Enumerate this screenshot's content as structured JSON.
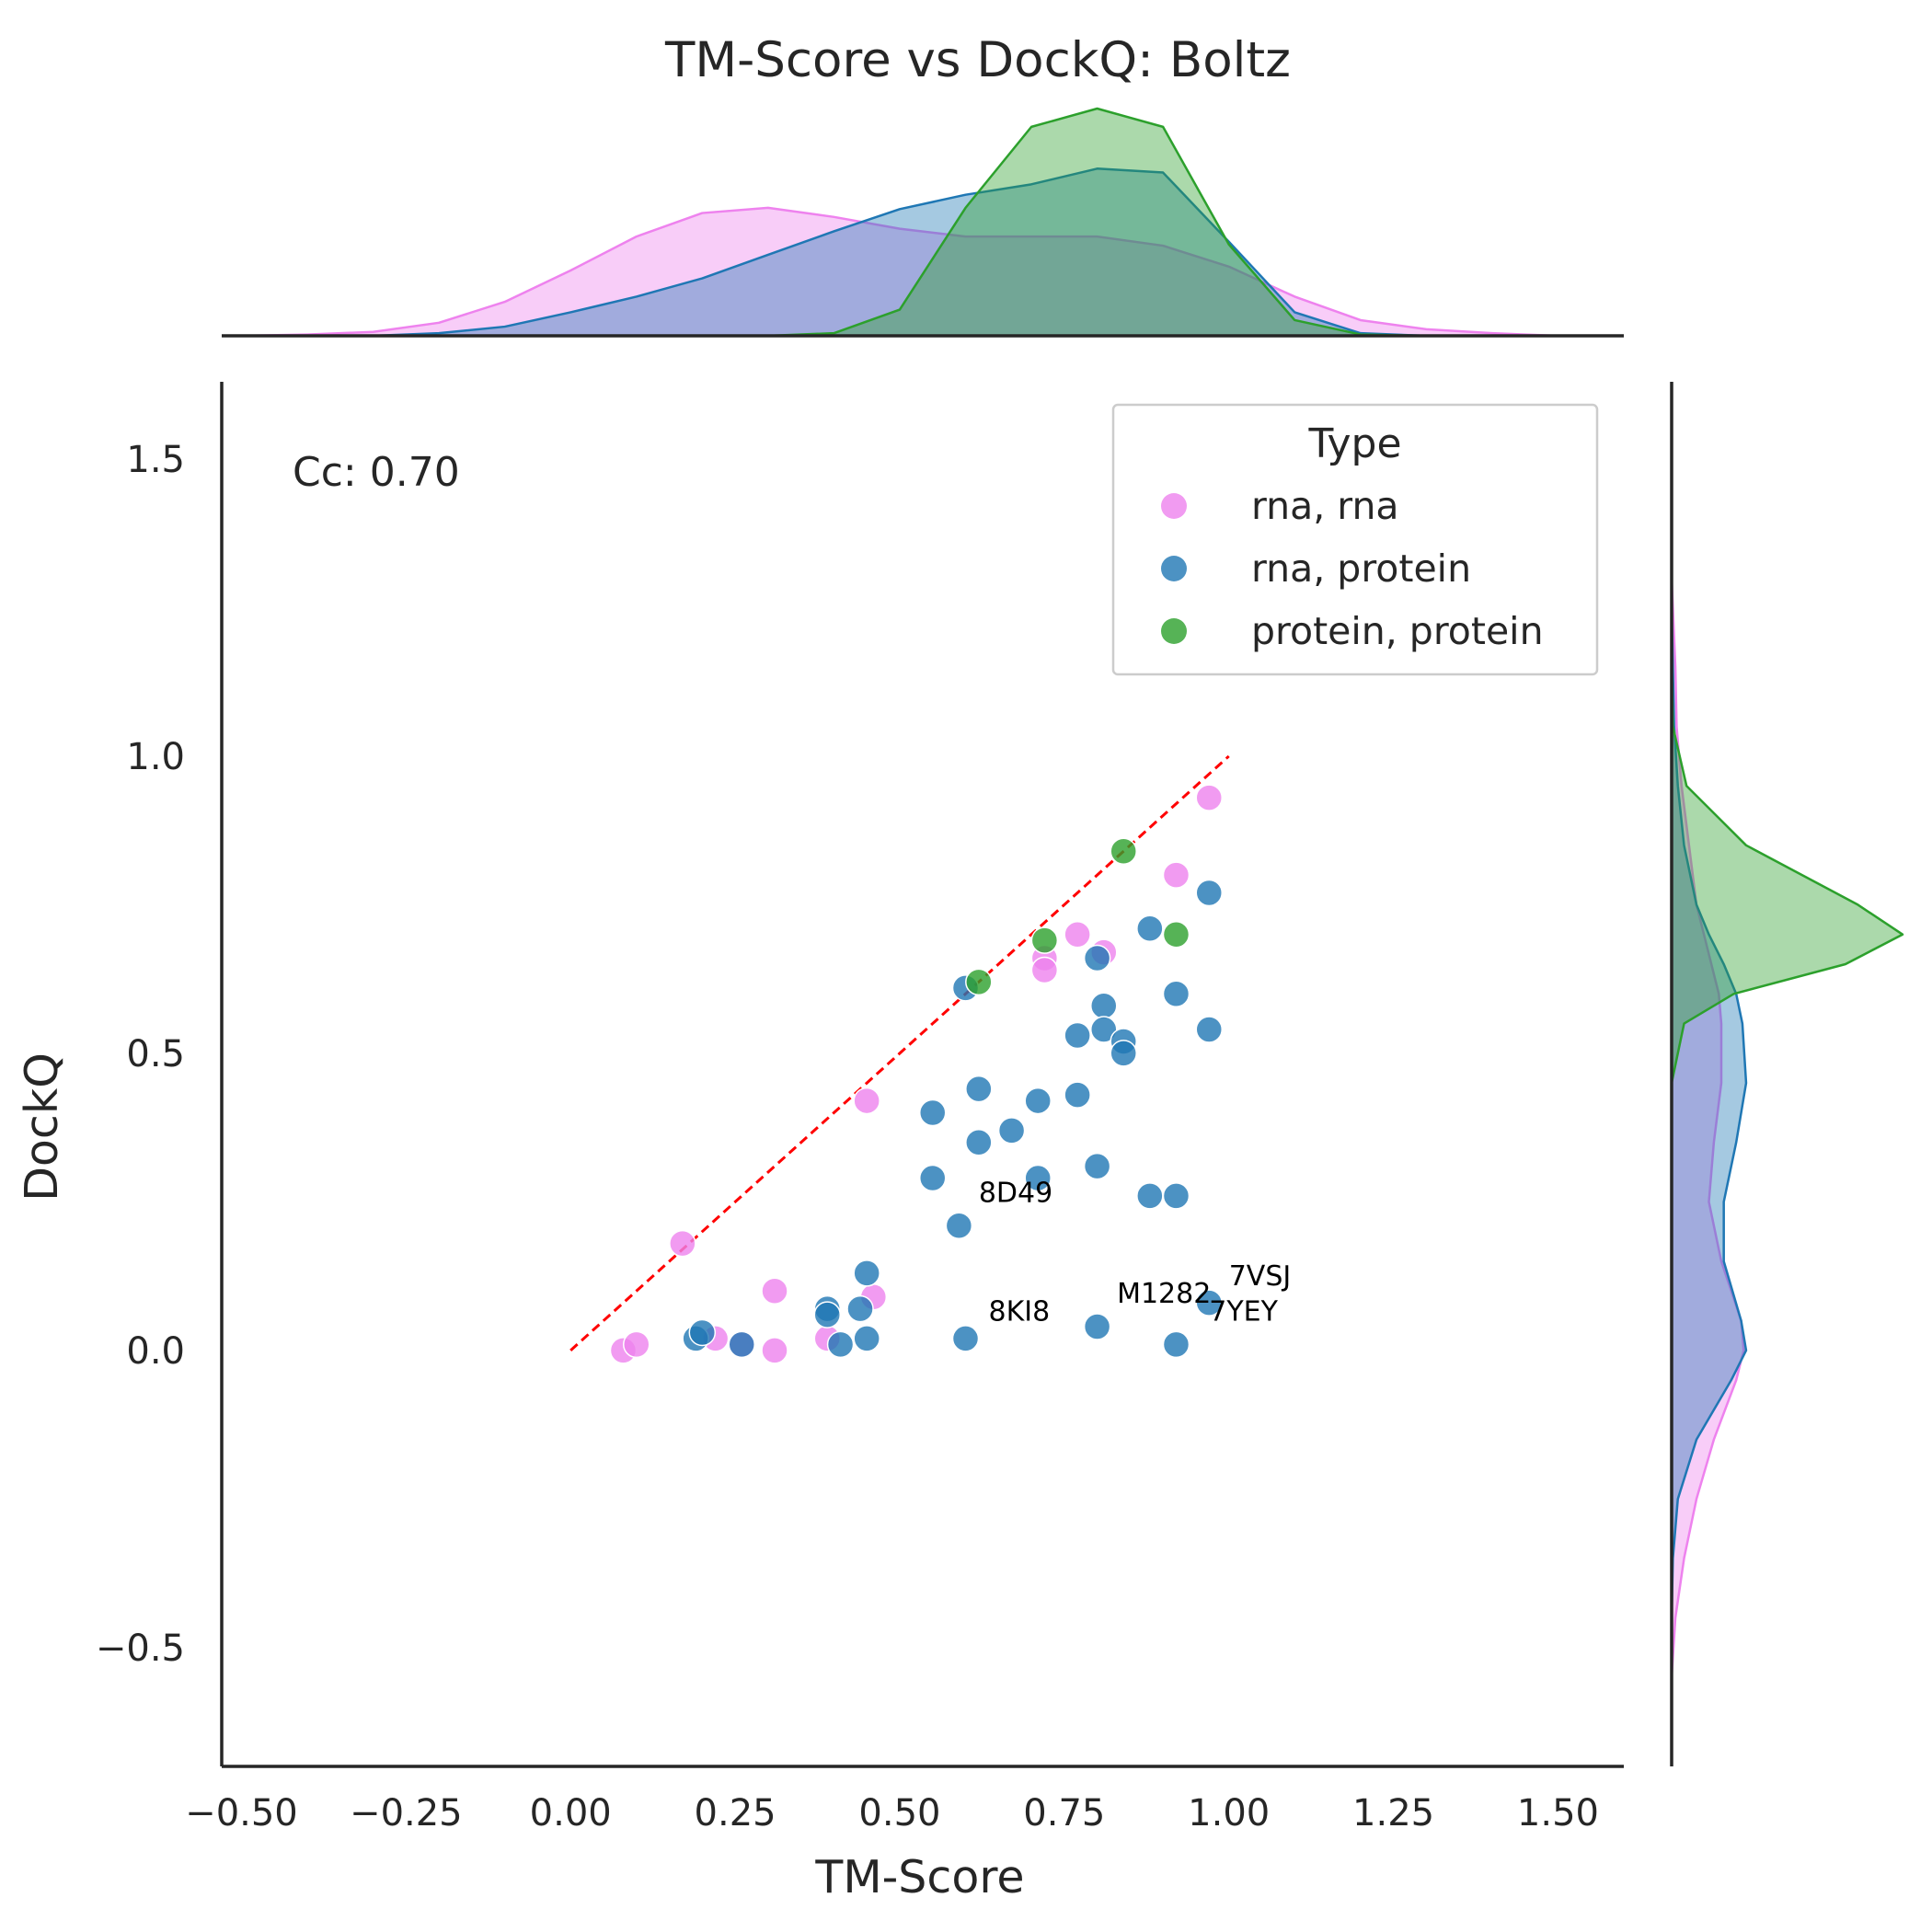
{
  "chart_data": {
    "type": "scatter",
    "title": "TM-Score vs DockQ: Boltz",
    "xlabel": "TM-Score",
    "ylabel": "DockQ",
    "xlim": [
      -0.53,
      1.6
    ],
    "ylim": [
      -0.7,
      1.63
    ],
    "xticks": [
      -0.5,
      -0.25,
      0.0,
      0.25,
      0.5,
      0.75,
      1.0,
      1.25,
      1.5
    ],
    "xtick_labels": [
      "−0.50",
      "−0.25",
      "0.00",
      "0.25",
      "0.50",
      "0.75",
      "1.00",
      "1.25",
      "1.50"
    ],
    "yticks": [
      -0.5,
      0.0,
      0.5,
      1.0,
      1.5
    ],
    "ytick_labels": [
      "−0.5",
      "0.0",
      "0.5",
      "1.0",
      "1.5"
    ],
    "grid": false,
    "annotation_text": "Cc: 0.70",
    "reference_line": {
      "x": [
        0,
        1
      ],
      "y": [
        0,
        1
      ],
      "color": "#ff0000",
      "style": "dashed"
    },
    "legend": {
      "title": "Type",
      "placement": "upper right"
    },
    "series": [
      {
        "name": "rna, rna",
        "color": "#ee82ee",
        "points": [
          [
            0.08,
            0.0
          ],
          [
            0.1,
            0.01
          ],
          [
            0.17,
            0.18
          ],
          [
            0.22,
            0.02
          ],
          [
            0.26,
            0.01
          ],
          [
            0.31,
            0.1
          ],
          [
            0.31,
            0.0
          ],
          [
            0.39,
            0.02
          ],
          [
            0.46,
            0.09
          ],
          [
            0.45,
            0.42
          ],
          [
            0.72,
            0.66
          ],
          [
            0.72,
            0.64
          ],
          [
            0.77,
            0.7
          ],
          [
            0.81,
            0.67
          ],
          [
            0.92,
            0.8
          ],
          [
            0.97,
            0.93
          ]
        ]
      },
      {
        "name": "rna, protein",
        "color": "#1f77b4",
        "points": [
          [
            0.19,
            0.02
          ],
          [
            0.2,
            0.03
          ],
          [
            0.26,
            0.01
          ],
          [
            0.39,
            0.07
          ],
          [
            0.39,
            0.06
          ],
          [
            0.41,
            0.01
          ],
          [
            0.44,
            0.07
          ],
          [
            0.45,
            0.02
          ],
          [
            0.45,
            0.13
          ],
          [
            0.55,
            0.4
          ],
          [
            0.55,
            0.29
          ],
          [
            0.59,
            0.21
          ],
          [
            0.6,
            0.02
          ],
          [
            0.6,
            0.61
          ],
          [
            0.62,
            0.44
          ],
          [
            0.62,
            0.35
          ],
          [
            0.67,
            0.37
          ],
          [
            0.71,
            0.42
          ],
          [
            0.71,
            0.29
          ],
          [
            0.77,
            0.53
          ],
          [
            0.77,
            0.43
          ],
          [
            0.8,
            0.66
          ],
          [
            0.81,
            0.58
          ],
          [
            0.81,
            0.54
          ],
          [
            0.8,
            0.31
          ],
          [
            0.8,
            0.04
          ],
          [
            0.84,
            0.52
          ],
          [
            0.84,
            0.5
          ],
          [
            0.88,
            0.71
          ],
          [
            0.88,
            0.26
          ],
          [
            0.92,
            0.6
          ],
          [
            0.92,
            0.26
          ],
          [
            0.92,
            0.01
          ],
          [
            0.97,
            0.77
          ],
          [
            0.97,
            0.54
          ],
          [
            0.97,
            0.08
          ]
        ]
      },
      {
        "name": "protein, protein",
        "color": "#2ca02c",
        "points": [
          [
            0.62,
            0.62
          ],
          [
            0.72,
            0.69
          ],
          [
            0.84,
            0.84
          ],
          [
            0.92,
            0.7
          ]
        ]
      }
    ],
    "point_labels": [
      {
        "text": "8D49",
        "x": 0.62,
        "y": 0.25
      },
      {
        "text": "8KI8",
        "x": 0.635,
        "y": 0.05
      },
      {
        "text": "M1282",
        "x": 0.83,
        "y": 0.08
      },
      {
        "text": "7VSJ",
        "x": 1.0,
        "y": 0.11
      },
      {
        "text": "7YEY",
        "x": 0.97,
        "y": 0.05
      }
    ],
    "marginal_x": {
      "type": "kde",
      "x": [
        -0.5,
        -0.4,
        -0.3,
        -0.2,
        -0.1,
        0.0,
        0.1,
        0.2,
        0.3,
        0.4,
        0.5,
        0.6,
        0.7,
        0.8,
        0.9,
        1.0,
        1.1,
        1.2,
        1.3,
        1.4,
        1.5
      ],
      "series": [
        {
          "name": "rna, rna",
          "values": [
            0.0,
            0.01,
            0.03,
            0.1,
            0.26,
            0.5,
            0.76,
            0.94,
            0.98,
            0.91,
            0.82,
            0.76,
            0.76,
            0.76,
            0.69,
            0.53,
            0.3,
            0.12,
            0.05,
            0.02,
            0.0
          ]
        },
        {
          "name": "rna, protein",
          "values": [
            0.0,
            0.0,
            0.0,
            0.02,
            0.07,
            0.18,
            0.3,
            0.44,
            0.62,
            0.8,
            0.97,
            1.08,
            1.16,
            1.28,
            1.25,
            0.72,
            0.18,
            0.02,
            0.0,
            0.0,
            0.0
          ]
        },
        {
          "name": "protein, protein",
          "values": [
            0.0,
            0.0,
            0.0,
            0.0,
            0.0,
            0.0,
            0.0,
            0.0,
            0.0,
            0.02,
            0.2,
            0.98,
            1.6,
            1.74,
            1.6,
            0.7,
            0.12,
            0.01,
            0.0,
            0.0,
            0.0
          ]
        }
      ]
    },
    "marginal_y": {
      "type": "kde",
      "y": [
        -0.55,
        -0.45,
        -0.35,
        -0.25,
        -0.15,
        -0.05,
        0.0,
        0.05,
        0.15,
        0.25,
        0.35,
        0.45,
        0.55,
        0.6,
        0.65,
        0.7,
        0.75,
        0.85,
        0.95,
        1.05,
        1.15,
        1.25,
        1.3
      ],
      "series": [
        {
          "name": "rna, rna",
          "values": [
            0.0,
            0.03,
            0.1,
            0.2,
            0.34,
            0.52,
            0.58,
            0.56,
            0.4,
            0.3,
            0.34,
            0.4,
            0.4,
            0.38,
            0.32,
            0.26,
            0.2,
            0.14,
            0.08,
            0.04,
            0.03,
            0.01,
            0.0
          ]
        },
        {
          "name": "rna, protein",
          "values": [
            0.0,
            0.0,
            0.01,
            0.05,
            0.2,
            0.48,
            0.6,
            0.56,
            0.42,
            0.42,
            0.52,
            0.6,
            0.57,
            0.52,
            0.42,
            0.3,
            0.2,
            0.1,
            0.05,
            0.02,
            0.01,
            0.0,
            0.0
          ]
        },
        {
          "name": "protein, protein",
          "values": [
            0.0,
            0.0,
            0.0,
            0.0,
            0.0,
            0.0,
            0.0,
            0.0,
            0.0,
            0.0,
            0.0,
            0.0,
            0.1,
            0.5,
            1.4,
            1.86,
            1.5,
            0.6,
            0.12,
            0.01,
            0.0,
            0.0,
            0.0
          ]
        }
      ]
    }
  }
}
